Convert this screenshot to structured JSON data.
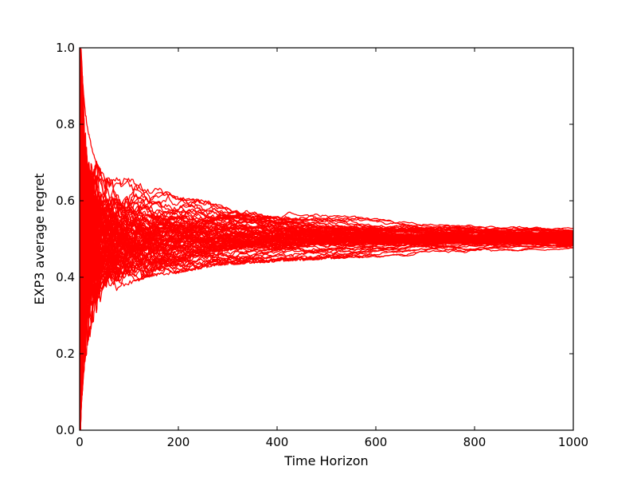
{
  "chart_data": {
    "type": "line",
    "title": "",
    "xlabel": "Time Horizon",
    "ylabel": "EXP3 average regret",
    "xlim": [
      0,
      1000
    ],
    "ylim": [
      0.0,
      1.0
    ],
    "x_ticks": [
      "0",
      "200",
      "400",
      "600",
      "800",
      "1000"
    ],
    "y_ticks": [
      "0.0",
      "0.2",
      "0.4",
      "0.6",
      "0.8",
      "1.0"
    ],
    "grid": false,
    "legend": "none",
    "line_color": "#ff0000",
    "series_count": 100,
    "series_x": [
      1,
      2,
      3,
      5,
      8,
      12,
      17,
      25,
      35,
      50,
      70,
      100,
      140,
      200,
      280,
      400,
      550,
      700,
      850,
      1000
    ],
    "series_envelope": {
      "upper": [
        1.0,
        1.0,
        1.0,
        0.95,
        0.88,
        0.83,
        0.79,
        0.74,
        0.7,
        0.67,
        0.66,
        0.66,
        0.65,
        0.61,
        0.6,
        0.58,
        0.57,
        0.56,
        0.555,
        0.55
      ],
      "center": [
        0.5,
        0.5,
        0.5,
        0.5,
        0.5,
        0.5,
        0.5,
        0.5,
        0.5,
        0.5,
        0.5,
        0.5,
        0.5,
        0.5,
        0.5,
        0.5,
        0.5,
        0.5,
        0.5,
        0.5
      ],
      "lower": [
        0.0,
        0.0,
        0.05,
        0.09,
        0.14,
        0.18,
        0.22,
        0.26,
        0.31,
        0.34,
        0.36,
        0.38,
        0.4,
        0.41,
        0.43,
        0.44,
        0.45,
        0.455,
        0.458,
        0.46
      ]
    }
  }
}
